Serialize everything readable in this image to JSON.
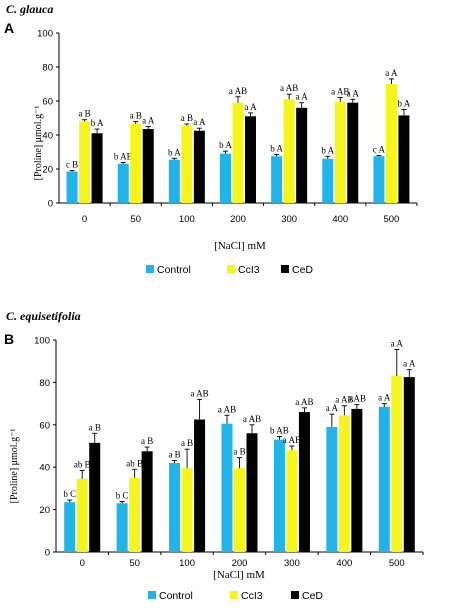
{
  "colors": {
    "Control": "#1fb4ea",
    "CcI3": "#f5f51a",
    "CeD": "#000000"
  },
  "chart_data": [
    {
      "type": "bar",
      "species": "C. glauca",
      "panel": "A",
      "categories": [
        "0",
        "50",
        "100",
        "200",
        "300",
        "400",
        "500"
      ],
      "xlabel": "[NaCl] mM",
      "ylabel": "[Proline] μmol.g⁻¹",
      "ylim": [
        0,
        100
      ],
      "yticks": [
        "0",
        "20",
        "40",
        "60",
        "80",
        "100"
      ],
      "legend": [
        "Control",
        "CcI3",
        "CeD"
      ],
      "series": [
        {
          "name": "Control",
          "values": [
            18.5,
            23,
            25.5,
            29,
            27.5,
            26,
            27.5
          ],
          "errors": [
            0.6,
            0.8,
            0.8,
            1.5,
            1.0,
            1.5,
            0.5
          ],
          "labels": [
            "c B",
            "b AB",
            "b A",
            "b A",
            "b A",
            "b A",
            "c A"
          ]
        },
        {
          "name": "CcI3",
          "values": [
            48,
            46.5,
            45.5,
            59,
            61,
            59.5,
            70
          ],
          "errors": [
            1.0,
            1.5,
            1.0,
            3.5,
            3.0,
            2.5,
            3.0
          ],
          "labels": [
            "a B",
            "a B",
            "a B",
            "a AB",
            "a AB",
            "a AB",
            "a A"
          ]
        },
        {
          "name": "CeD",
          "values": [
            41,
            43.5,
            42.5,
            51,
            56,
            59,
            51.5
          ],
          "errors": [
            2.5,
            1.5,
            1.5,
            2.0,
            3.0,
            2.0,
            3.5
          ],
          "labels": [
            "b A",
            "a A",
            "a A",
            "a A",
            "a A",
            "a A",
            "b A"
          ]
        }
      ]
    },
    {
      "type": "bar",
      "species": "C. equisetifolia",
      "panel": "B",
      "categories": [
        "0",
        "50",
        "100",
        "200",
        "300",
        "400",
        "500"
      ],
      "xlabel": "[NaCl] mM",
      "ylabel": "[Proline] μmol.g⁻¹",
      "ylim": [
        0,
        100
      ],
      "yticks": [
        "0",
        "20",
        "40",
        "60",
        "80",
        "100"
      ],
      "legend": [
        "Control",
        "CcI3",
        "CeD"
      ],
      "series": [
        {
          "name": "Control",
          "values": [
            23.5,
            23,
            42,
            60.5,
            53,
            59,
            68.5
          ],
          "errors": [
            1.0,
            0.8,
            1.2,
            4.0,
            1.5,
            6.0,
            1.5
          ],
          "labels": [
            "b C",
            "b C",
            "a B",
            "a AB",
            "b AB",
            "a A",
            "a A"
          ]
        },
        {
          "name": "CcI3",
          "values": [
            34.5,
            35,
            39.5,
            39.5,
            48,
            64.5,
            83
          ],
          "errors": [
            4.0,
            4.0,
            9.0,
            5.0,
            2.0,
            4.5,
            12.5
          ],
          "labels": [
            "ab B",
            "ab B",
            "a B",
            "a B",
            "a AB",
            "a AB",
            "a A"
          ]
        },
        {
          "name": "CeD",
          "values": [
            51.5,
            47.5,
            62.5,
            56,
            66,
            67.5,
            82.5
          ],
          "errors": [
            4.5,
            2.0,
            9.5,
            4.0,
            2.0,
            2.0,
            3.5
          ],
          "labels": [
            "a B",
            "a B",
            "a AB",
            "a AB",
            "a AB",
            "a AB",
            "a A"
          ]
        }
      ]
    }
  ]
}
